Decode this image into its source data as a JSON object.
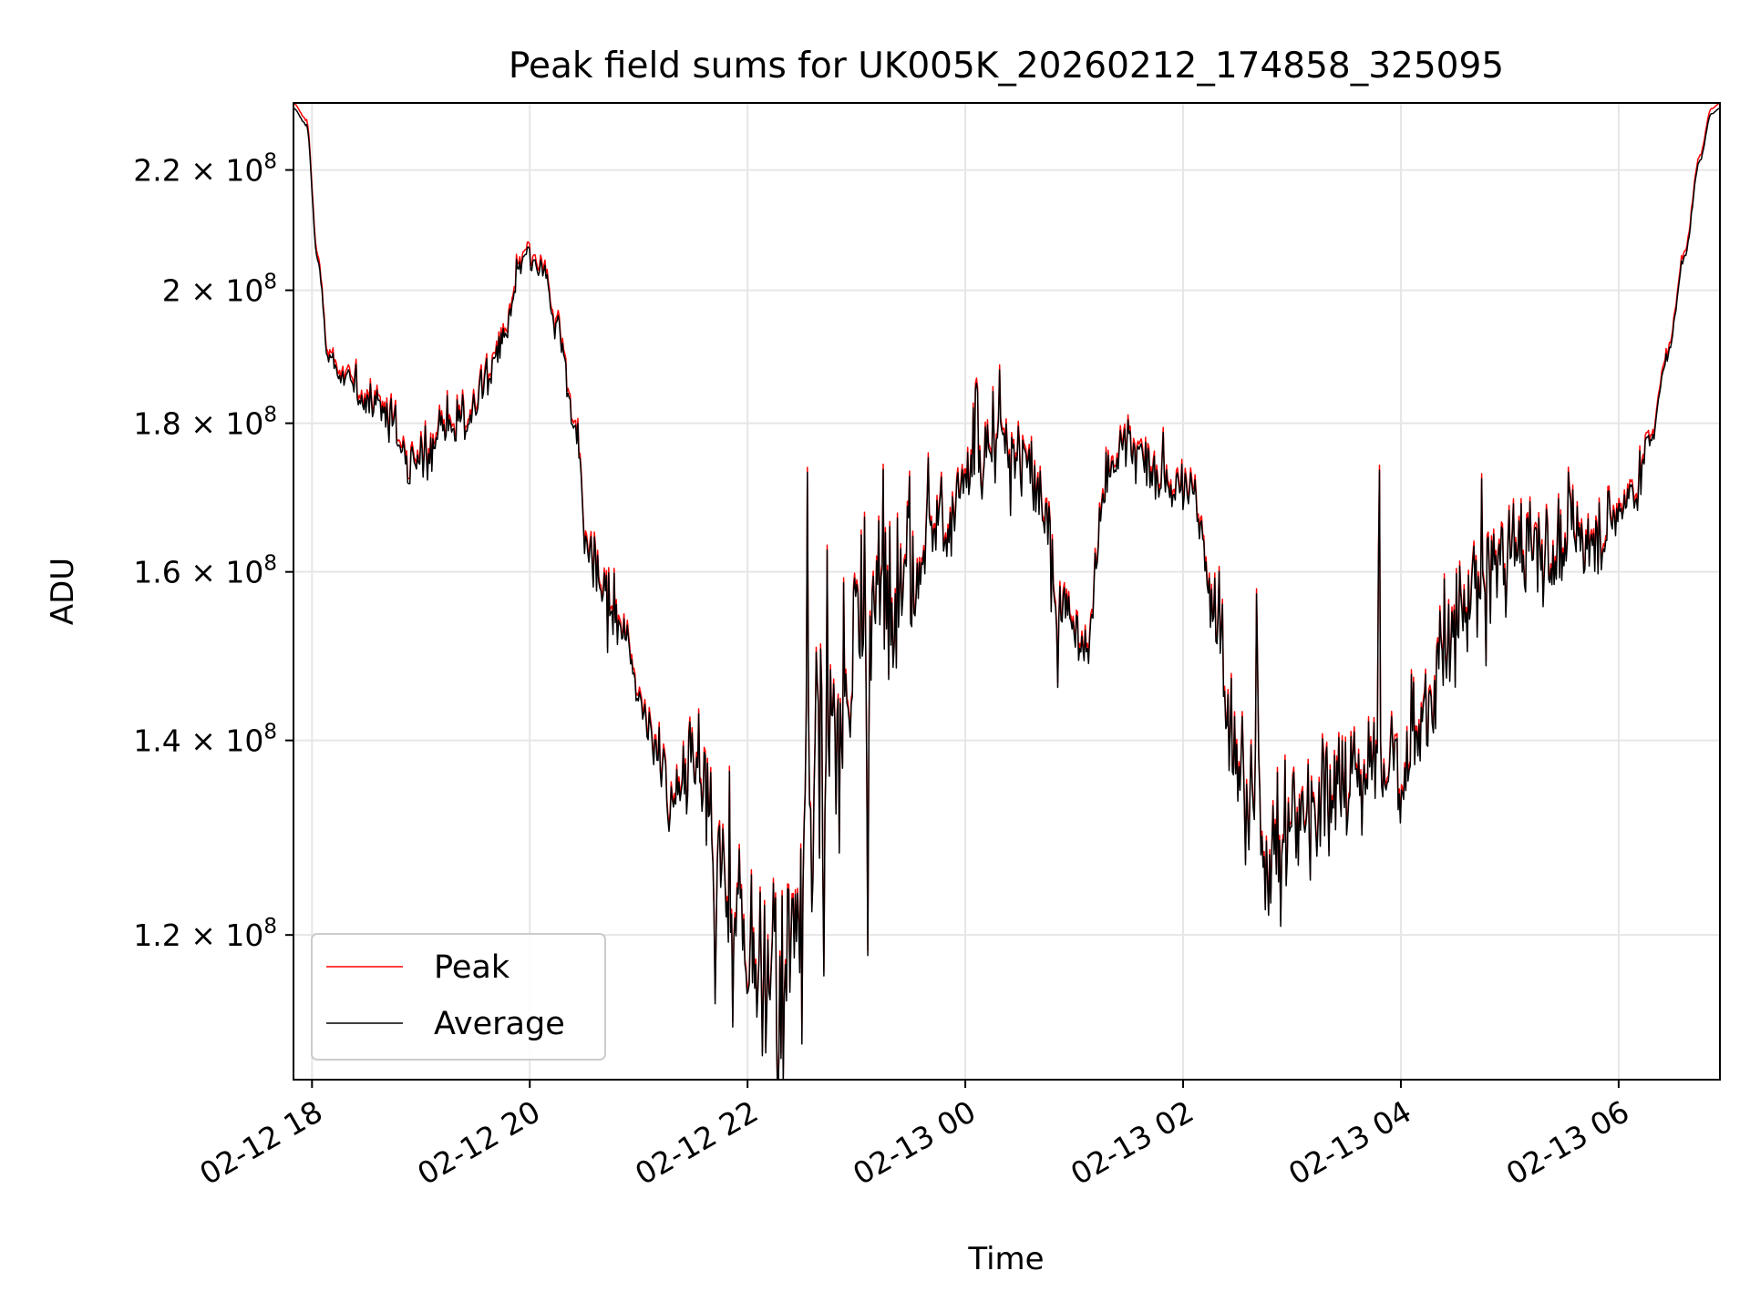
{
  "chart_data": {
    "type": "line",
    "title": "Peak field sums for UK005K_20260212_174858_325095",
    "xlabel": "Time",
    "ylabel": "ADU",
    "yscale": "log",
    "ylim": [
      107000000,
      232000000
    ],
    "xlim_hours_from_02-12_00": [
      17.83,
      30.93
    ],
    "grid": true,
    "legend_position": "lower-left",
    "x_ticks": [
      {
        "label": "02-12 18",
        "hour": 18
      },
      {
        "label": "02-12 20",
        "hour": 20
      },
      {
        "label": "02-12 22",
        "hour": 22
      },
      {
        "label": "02-13 00",
        "hour": 24
      },
      {
        "label": "02-13 02",
        "hour": 26
      },
      {
        "label": "02-13 04",
        "hour": 28
      },
      {
        "label": "02-13 06",
        "hour": 30
      }
    ],
    "y_ticks": [
      {
        "mantissa": "1.2",
        "value": 120000000
      },
      {
        "mantissa": "1.4",
        "value": 140000000
      },
      {
        "mantissa": "1.6",
        "value": 160000000
      },
      {
        "mantissa": "1.8",
        "value": 180000000
      },
      {
        "mantissa": "2",
        "value": 200000000
      },
      {
        "mantissa": "2.2",
        "value": 220000000
      }
    ],
    "y_tick_suffix": "× 10",
    "y_tick_exponent": "8",
    "series": [
      {
        "name": "Peak",
        "color": "#ff0000",
        "offset_factor": 1.004
      },
      {
        "name": "Average",
        "color": "#000000",
        "offset_factor": 1.0
      }
    ],
    "envelope_hours": [
      17.83,
      17.95,
      18.05,
      18.15,
      18.3,
      18.5,
      18.7,
      18.9,
      19.0,
      19.2,
      19.4,
      19.6,
      19.75,
      19.95,
      20.1,
      20.25,
      20.4,
      20.55,
      20.75,
      20.9,
      21.0,
      21.2,
      21.3,
      21.5,
      21.7,
      21.9,
      22.1,
      22.3,
      22.5,
      22.7,
      23.0,
      23.4,
      23.8,
      24.1,
      24.4,
      24.6,
      24.9,
      25.1,
      25.3,
      25.5,
      25.7,
      26.1,
      26.3,
      26.5,
      26.6,
      26.8,
      27.0,
      27.4,
      27.7,
      28.0,
      28.2,
      28.4,
      28.7,
      29.0,
      29.3,
      29.6,
      29.9,
      30.15,
      30.3,
      30.45,
      30.6,
      30.75,
      30.85,
      30.93
    ],
    "envelope_values": [
      231000000,
      228000000,
      205000000,
      190000000,
      186000000,
      184000000,
      181000000,
      175000000,
      174000000,
      180000000,
      180000000,
      186000000,
      192000000,
      205000000,
      203000000,
      195000000,
      181000000,
      162000000,
      155000000,
      151000000,
      145000000,
      138000000,
      133000000,
      140000000,
      130000000,
      120000000,
      118000000,
      116000000,
      128000000,
      140000000,
      150000000,
      162000000,
      167000000,
      173000000,
      178000000,
      172000000,
      158000000,
      150000000,
      172000000,
      178000000,
      173000000,
      170000000,
      156000000,
      136000000,
      133000000,
      129000000,
      131000000,
      136000000,
      136000000,
      137000000,
      142000000,
      150000000,
      158000000,
      163000000,
      163000000,
      164000000,
      166000000,
      171000000,
      178000000,
      190000000,
      205000000,
      222000000,
      230000000,
      231000000
    ],
    "noise_envelope_hours": [
      17.83,
      18.1,
      18.4,
      19.0,
      19.9,
      20.3,
      20.7,
      21.0,
      21.5,
      21.8,
      22.2,
      22.6,
      22.9,
      23.4,
      24.0,
      24.6,
      25.0,
      25.6,
      26.2,
      26.4,
      26.9,
      27.6,
      28.3,
      28.8,
      29.5,
      30.1,
      30.35,
      30.93
    ],
    "noise_envelope_values": [
      0.0,
      0.003,
      0.012,
      0.02,
      0.01,
      0.012,
      0.025,
      0.01,
      0.035,
      0.055,
      0.075,
      0.09,
      0.09,
      0.055,
      0.035,
      0.035,
      0.025,
      0.02,
      0.02,
      0.05,
      0.05,
      0.045,
      0.04,
      0.045,
      0.035,
      0.02,
      0.005,
      0.0
    ],
    "dips": [
      {
        "hour": 22.33,
        "value": 106000000
      },
      {
        "hour": 21.7,
        "value": 112000000
      },
      {
        "hour": 22.15,
        "value": 113000000
      },
      {
        "hour": 22.7,
        "value": 114000000
      },
      {
        "hour": 24.85,
        "value": 145000000
      },
      {
        "hour": 26.9,
        "value": 123000000
      },
      {
        "hour": 23.1,
        "value": 129000000
      }
    ],
    "spikes": [
      {
        "hour": 22.55,
        "value": 163000000
      },
      {
        "hour": 23.08,
        "value": 170000000
      },
      {
        "hour": 27.8,
        "value": 175000000
      },
      {
        "hour": 24.1,
        "value": 182000000
      },
      {
        "hour": 25.5,
        "value": 180000000
      },
      {
        "hour": 26.68,
        "value": 151000000
      }
    ],
    "sample_count": 1300
  }
}
